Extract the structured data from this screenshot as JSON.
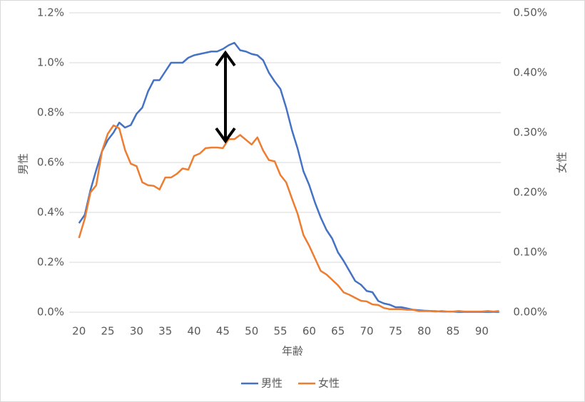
{
  "chart_data": {
    "type": "line",
    "x_label": "年齢",
    "y_label": "男性",
    "y2_label": "女性",
    "x": [
      20,
      21,
      22,
      23,
      24,
      25,
      26,
      27,
      28,
      29,
      30,
      31,
      32,
      33,
      34,
      35,
      36,
      37,
      38,
      39,
      40,
      41,
      42,
      43,
      44,
      45,
      46,
      47,
      48,
      49,
      50,
      51,
      52,
      53,
      54,
      55,
      56,
      57,
      58,
      59,
      60,
      61,
      62,
      63,
      64,
      65,
      66,
      67,
      68,
      69,
      70,
      71,
      72,
      73,
      74,
      75,
      76,
      77,
      78,
      79,
      80,
      81,
      82,
      83,
      84,
      85,
      86,
      87,
      88,
      89,
      90,
      91,
      92,
      93
    ],
    "xlim": [
      18.3,
      93.3
    ],
    "xticks": [
      20,
      25,
      30,
      35,
      40,
      45,
      50,
      55,
      60,
      65,
      70,
      75,
      80,
      85,
      90
    ],
    "ylim": [
      0,
      1.2
    ],
    "yticks": [
      {
        "value": 0,
        "label": "0.0%"
      },
      {
        "value": 0.2,
        "label": "0.2%"
      },
      {
        "value": 0.4,
        "label": "0.4%"
      },
      {
        "value": 0.6,
        "label": "0.6%"
      },
      {
        "value": 0.8,
        "label": "0.8%"
      },
      {
        "value": 1.0,
        "label": "1.0%"
      },
      {
        "value": 1.2,
        "label": "1.2%"
      }
    ],
    "y2lim": [
      0,
      0.5
    ],
    "y2ticks": [
      {
        "value": 0,
        "label": "0.00%"
      },
      {
        "value": 0.1,
        "label": "0.10%"
      },
      {
        "value": 0.2,
        "label": "0.20%"
      },
      {
        "value": 0.3,
        "label": "0.30%"
      },
      {
        "value": 0.4,
        "label": "0.40%"
      },
      {
        "value": 0.5,
        "label": "0.50%"
      }
    ],
    "grid": true,
    "legend": "bottom",
    "series": [
      {
        "name": "男性",
        "color": "#4472c4",
        "values": [
          0.357,
          0.39,
          0.49,
          0.57,
          0.645,
          0.69,
          0.72,
          0.76,
          0.74,
          0.75,
          0.795,
          0.82,
          0.885,
          0.93,
          0.93,
          0.965,
          1.0,
          1.0,
          1.0,
          1.02,
          1.03,
          1.035,
          1.04,
          1.045,
          1.045,
          1.055,
          1.07,
          1.08,
          1.05,
          1.045,
          1.035,
          1.03,
          1.01,
          0.96,
          0.925,
          0.895,
          0.82,
          0.73,
          0.655,
          0.565,
          0.51,
          0.44,
          0.38,
          0.33,
          0.295,
          0.24,
          0.205,
          0.165,
          0.125,
          0.11,
          0.085,
          0.08,
          0.045,
          0.035,
          0.03,
          0.02,
          0.02,
          0.015,
          0.01,
          0.008,
          0.006,
          0.005,
          0.004,
          0.003,
          0.002,
          0.002,
          0.001,
          0.001,
          0.001,
          0.001,
          0.001,
          0.001,
          0.001,
          0.001
        ]
      },
      {
        "name": "女性",
        "color": "#ed7d31",
        "axis": "y2",
        "values": [
          0.124,
          0.156,
          0.2,
          0.212,
          0.269,
          0.298,
          0.312,
          0.307,
          0.271,
          0.248,
          0.244,
          0.217,
          0.212,
          0.211,
          0.205,
          0.225,
          0.225,
          0.231,
          0.24,
          0.238,
          0.261,
          0.265,
          0.274,
          0.275,
          0.275,
          0.274,
          0.289,
          0.289,
          0.296,
          0.288,
          0.28,
          0.292,
          0.27,
          0.254,
          0.252,
          0.229,
          0.217,
          0.19,
          0.164,
          0.129,
          0.111,
          0.09,
          0.069,
          0.063,
          0.054,
          0.045,
          0.033,
          0.029,
          0.024,
          0.019,
          0.018,
          0.013,
          0.012,
          0.007,
          0.005,
          0.005,
          0.005,
          0.004,
          0.004,
          0.002,
          0.002,
          0.002,
          0.001,
          0.002,
          0.001,
          0.001,
          0.002,
          0.001,
          0.001,
          0.001,
          0.001,
          0.002,
          0.001,
          0.002
        ]
      }
    ]
  }
}
